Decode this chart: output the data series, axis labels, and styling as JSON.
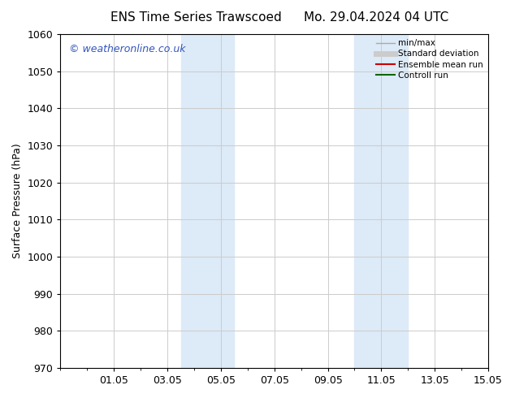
{
  "title_left": "ENS Time Series Trawscoed",
  "title_right": "Mo. 29.04.2024 04 UTC",
  "ylabel": "Surface Pressure (hPa)",
  "ylim": [
    970,
    1060
  ],
  "yticks": [
    970,
    980,
    990,
    1000,
    1010,
    1020,
    1030,
    1040,
    1050,
    1060
  ],
  "xlim": [
    0,
    16
  ],
  "xtick_labels": [
    "01.05",
    "03.05",
    "05.05",
    "07.05",
    "09.05",
    "11.05",
    "13.05",
    "15.05"
  ],
  "xtick_positions": [
    2,
    4,
    6,
    8,
    10,
    12,
    14,
    16
  ],
  "shaded_regions": [
    {
      "x_start": 4.5,
      "x_end": 6.5
    },
    {
      "x_start": 11.0,
      "x_end": 13.0
    }
  ],
  "shaded_color": "#ddeaf7",
  "background_color": "#ffffff",
  "plot_bg_color": "#ffffff",
  "watermark_text": "© weatheronline.co.uk",
  "watermark_color": "#3355bb",
  "legend_entries": [
    {
      "label": "min/max",
      "color": "#aaaaaa",
      "linestyle": "-",
      "linewidth": 1.0
    },
    {
      "label": "Standard deviation",
      "color": "#cccccc",
      "linestyle": "-",
      "linewidth": 5
    },
    {
      "label": "Ensemble mean run",
      "color": "#cc0000",
      "linestyle": "-",
      "linewidth": 1.5
    },
    {
      "label": "Controll run",
      "color": "#006600",
      "linestyle": "-",
      "linewidth": 1.5
    }
  ],
  "grid_color": "#cccccc",
  "tick_color": "#000000",
  "spine_color": "#000000",
  "font_size": 9,
  "title_font_size": 11,
  "watermark_fontsize": 9
}
